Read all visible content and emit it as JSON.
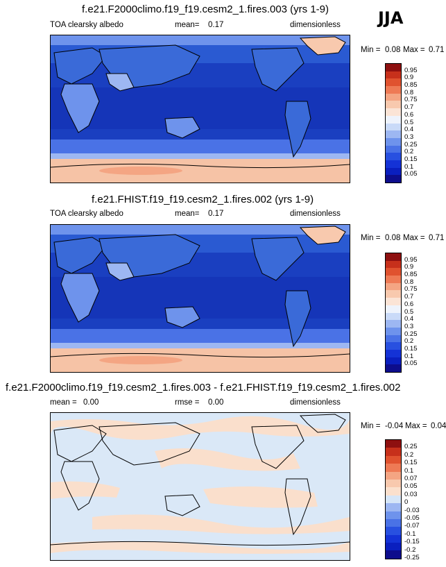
{
  "season": "JJA",
  "panels": [
    {
      "title": "f.e21.F2000climo.f19_f19.cesm2_1.fires.003 (yrs 1-9)",
      "left_label": "TOA clearsky albedo",
      "mid_label_prefix": "mean=",
      "mid_value": "0.17",
      "units": "dimensionless",
      "min_label": "Min =",
      "min_value": "0.08",
      "max_label": "Max =",
      "max_value": "0.71",
      "colorbar_labels": [
        "0.95",
        "0.9",
        "0.85",
        "0.8",
        "0.75",
        "0.7",
        "0.6",
        "0.5",
        "0.4",
        "0.3",
        "0.25",
        "0.2",
        "0.15",
        "0.1",
        "0.05"
      ]
    },
    {
      "title": "f.e21.FHIST.f19_f19.cesm2_1.fires.002 (yrs 1-9)",
      "left_label": "TOA clearsky albedo",
      "mid_label_prefix": "mean=",
      "mid_value": "0.17",
      "units": "dimensionless",
      "min_label": "Min =",
      "min_value": "0.08",
      "max_label": "Max =",
      "max_value": "0.71",
      "colorbar_labels": [
        "0.95",
        "0.9",
        "0.85",
        "0.8",
        "0.75",
        "0.7",
        "0.6",
        "0.5",
        "0.4",
        "0.3",
        "0.25",
        "0.2",
        "0.15",
        "0.1",
        "0.05"
      ]
    },
    {
      "title": "f.e21.F2000climo.f19_f19.cesm2_1.fires.003 - f.e21.FHIST.f19_f19.cesm2_1.fires.002",
      "left_label": "mean =",
      "left_value": "0.00",
      "mid_label_prefix": "rmse =",
      "mid_value": "0.00",
      "units": "dimensionless",
      "min_label": "Min =",
      "min_value": "-0.04",
      "max_label": "Max =",
      "max_value": "0.04",
      "colorbar_labels": [
        "0.25",
        "0.2",
        "0.15",
        "0.1",
        "0.07",
        "0.05",
        "0.03",
        "0",
        "-0.03",
        "-0.05",
        "-0.07",
        "-0.1",
        "-0.15",
        "-0.2",
        "-0.25"
      ]
    }
  ],
  "colors": {
    "abs_scale": [
      "#0d0d8c",
      "#0a1fbf",
      "#1432d6",
      "#2850e0",
      "#4a72e6",
      "#6e93ec",
      "#9db7f2",
      "#c9daf8",
      "#eef3fc",
      "#fbe4d6",
      "#f8c9ae",
      "#f4a583",
      "#ee7a55",
      "#e0522f",
      "#c7301b",
      "#8e1010"
    ],
    "diff_scale": [
      "#0d0d8c",
      "#0a1fbf",
      "#1432d6",
      "#2850e0",
      "#4a72e6",
      "#6e93ec",
      "#9db7f2",
      "#d6e6f8",
      "#fbe0cd",
      "#f8c9ae",
      "#f4a583",
      "#ee7a55",
      "#e0522f",
      "#c7301b",
      "#8e1010"
    ],
    "map_deep_ocean": "#1535b8",
    "map_ocean": "#1e4ccc",
    "map_mid": "#3a6ad8",
    "map_light": "#6e93ec",
    "map_bright": "#9db7f2",
    "map_ice": "#f6c3a6",
    "diff_neg": "#dae8f7",
    "diff_pos": "#fadfcc"
  }
}
